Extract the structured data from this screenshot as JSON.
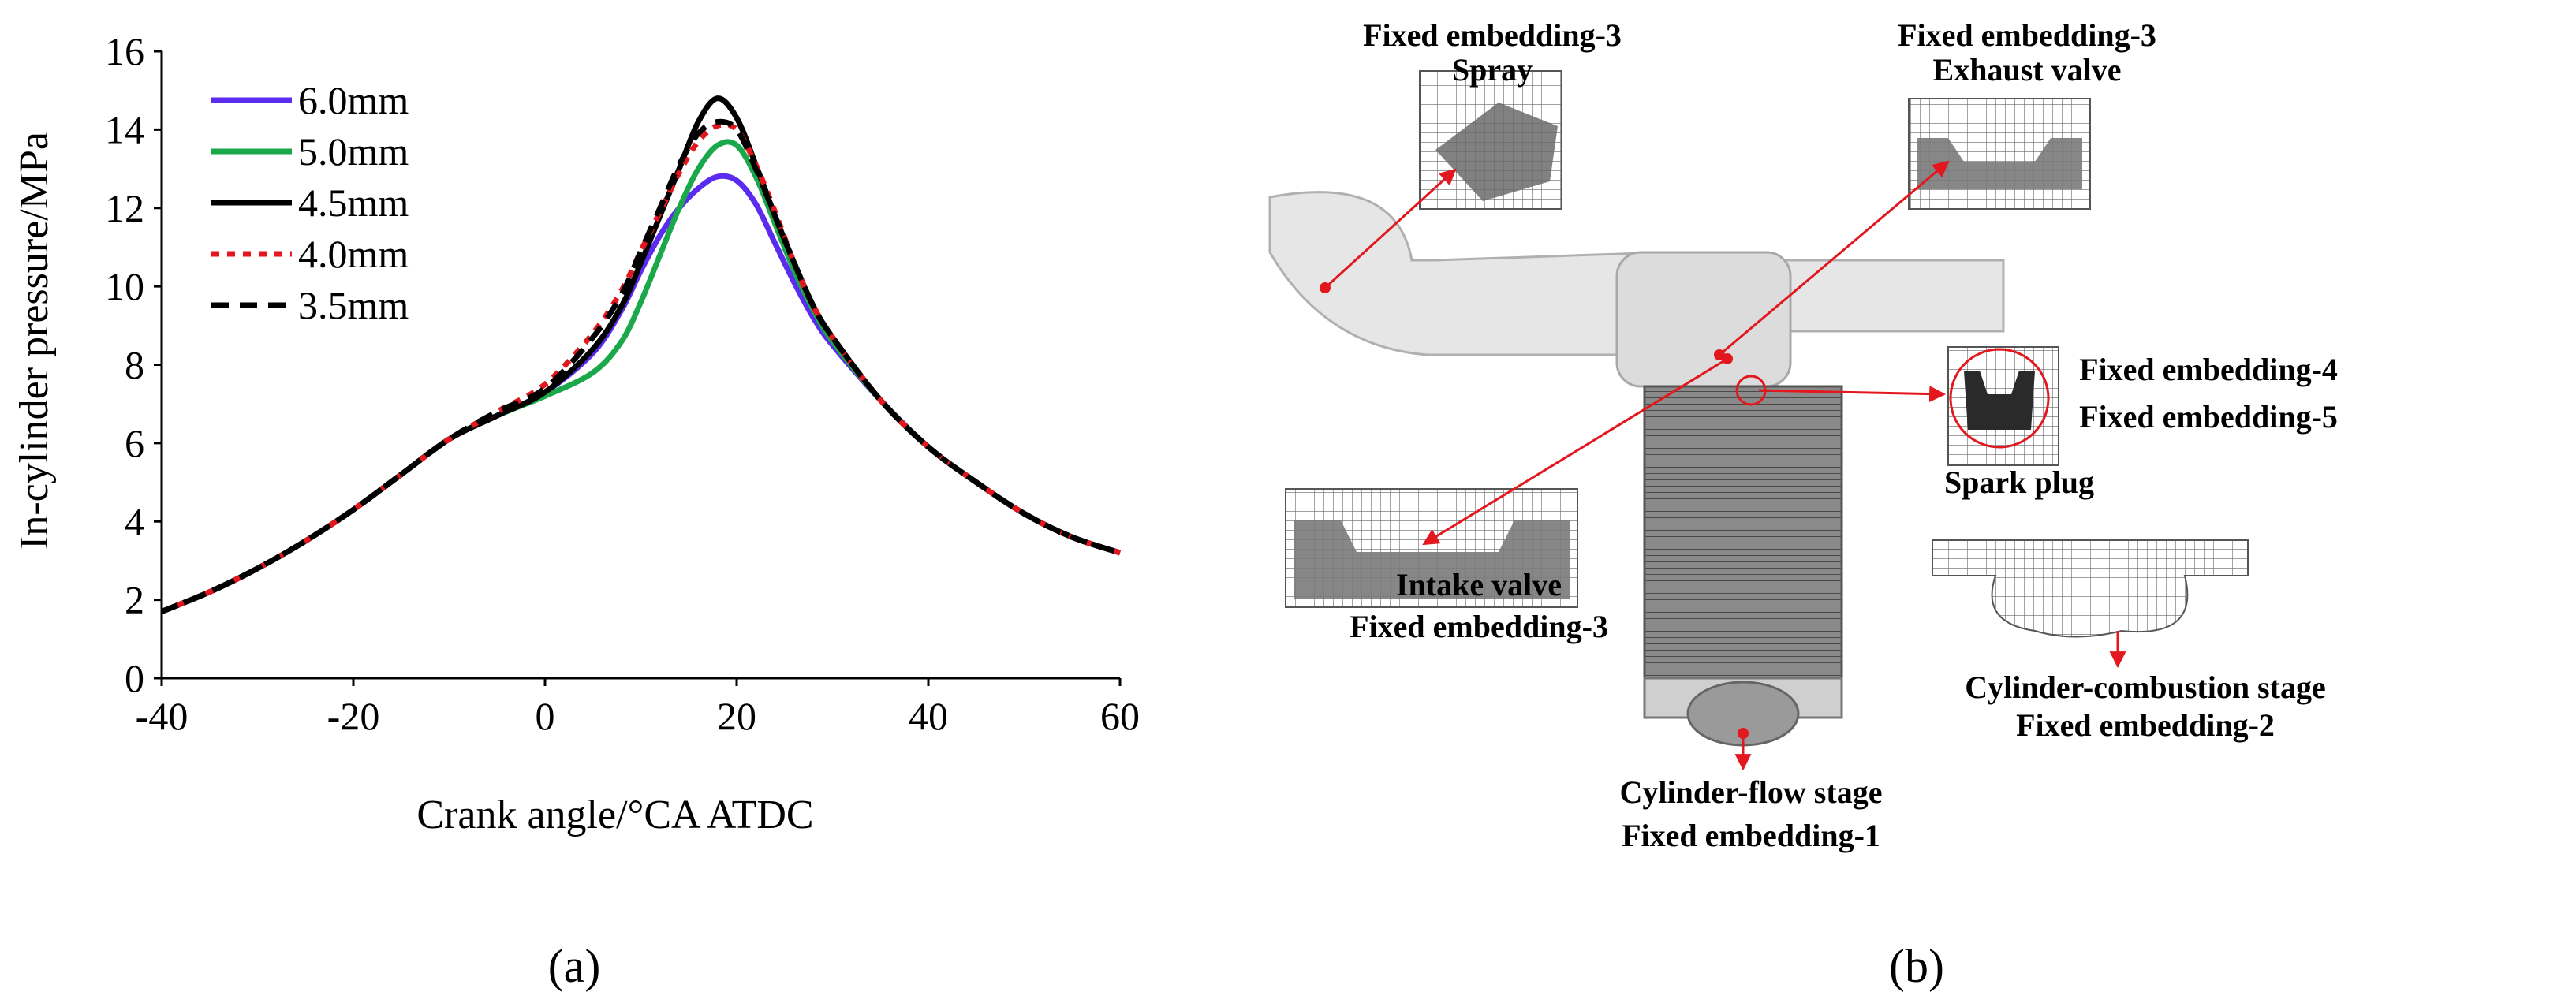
{
  "panel_a": {
    "caption": "(a)",
    "chart_data": {
      "type": "line",
      "title": "",
      "xlabel": "Crank angle/°CA ATDC",
      "ylabel": "In-cylinder pressure/MPa",
      "xlim": [
        -40,
        60
      ],
      "ylim": [
        0,
        16
      ],
      "xticks": [
        "-40",
        "-20",
        "0",
        "20",
        "40",
        "60"
      ],
      "yticks": [
        "0",
        "2",
        "4",
        "6",
        "8",
        "10",
        "12",
        "14",
        "16"
      ],
      "grid": false,
      "legend_position": "top-left",
      "x": [
        -40,
        -35,
        -30,
        -25,
        -20,
        -15,
        -10,
        -5,
        0,
        5,
        8,
        10,
        12,
        14,
        16,
        18,
        20,
        22,
        24,
        26,
        28,
        30,
        35,
        40,
        45,
        50,
        55,
        60
      ],
      "series": [
        {
          "name": "6.0mm",
          "color": "#5b2cf0",
          "dash": "solid",
          "values": [
            1.7,
            2.2,
            2.8,
            3.5,
            4.3,
            5.2,
            6.1,
            6.7,
            7.3,
            8.3,
            9.4,
            10.4,
            11.3,
            12.0,
            12.5,
            12.8,
            12.7,
            12.1,
            11.1,
            10.1,
            9.2,
            8.5,
            7.1,
            5.9,
            5.0,
            4.2,
            3.6,
            3.2
          ]
        },
        {
          "name": "5.0mm",
          "color": "#1aa84a",
          "dash": "solid",
          "values": [
            1.7,
            2.2,
            2.8,
            3.5,
            4.3,
            5.2,
            6.1,
            6.7,
            7.2,
            7.8,
            8.6,
            9.6,
            10.8,
            12.0,
            13.0,
            13.6,
            13.6,
            12.8,
            11.6,
            10.4,
            9.4,
            8.6,
            7.1,
            5.9,
            5.0,
            4.2,
            3.6,
            3.2
          ]
        },
        {
          "name": "4.5mm",
          "color": "#000000",
          "dash": "solid",
          "values": [
            1.7,
            2.2,
            2.8,
            3.5,
            4.3,
            5.2,
            6.1,
            6.7,
            7.3,
            8.4,
            9.5,
            10.6,
            11.8,
            13.0,
            14.2,
            14.8,
            14.3,
            13.1,
            11.8,
            10.6,
            9.5,
            8.7,
            7.1,
            5.9,
            5.0,
            4.2,
            3.6,
            3.2
          ]
        },
        {
          "name": "4.0mm",
          "color": "#e3171e",
          "dash": "dotted",
          "values": [
            1.7,
            2.2,
            2.8,
            3.5,
            4.3,
            5.2,
            6.1,
            6.8,
            7.5,
            8.8,
            9.9,
            10.9,
            11.9,
            12.9,
            13.7,
            14.1,
            14.0,
            13.1,
            11.9,
            10.6,
            9.5,
            8.7,
            7.1,
            5.9,
            5.0,
            4.2,
            3.6,
            3.2
          ]
        },
        {
          "name": "3.5mm",
          "color": "#000000",
          "dash": "dashed",
          "values": [
            1.7,
            2.2,
            2.8,
            3.5,
            4.3,
            5.2,
            6.1,
            6.8,
            7.4,
            8.7,
            9.8,
            10.9,
            12.0,
            13.1,
            13.9,
            14.2,
            14.0,
            13.0,
            11.8,
            10.6,
            9.5,
            8.7,
            7.1,
            5.9,
            5.0,
            4.2,
            3.6,
            3.2
          ]
        }
      ]
    }
  },
  "panel_b": {
    "caption": "(b)",
    "labels": {
      "spray_1": "Fixed embedding-3",
      "spray_2": "Spray",
      "exhaust_1": "Fixed embedding-3",
      "exhaust_2": "Exhaust valve",
      "fe4": "Fixed embedding-4",
      "fe5": "Fixed embedding-5",
      "spark": "Spark plug",
      "intake_1": "Intake valve",
      "intake_2": "Fixed embedding-3",
      "comb_1": "Cylinder-combustion stage",
      "comb_2": "Fixed embedding-2",
      "flow_1": "Cylinder-flow stage",
      "flow_2": "Fixed embedding-1"
    },
    "colors": {
      "arrow": "#e3171e",
      "mesh": "#333333",
      "body": "#d9d9d9"
    }
  }
}
